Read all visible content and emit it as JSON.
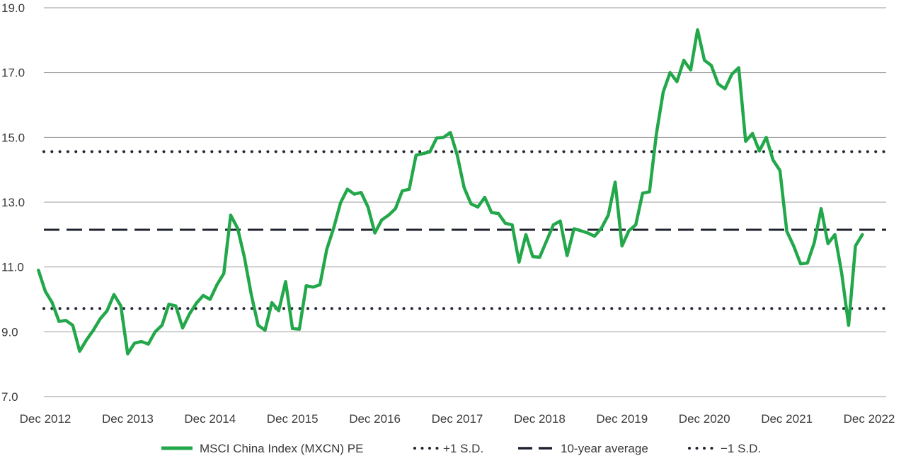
{
  "chart_data": {
    "type": "line",
    "title": "",
    "xlabel": "",
    "ylabel": "",
    "ylim": [
      7.0,
      19.0
    ],
    "xlim": [
      "2012-11",
      "2022-12"
    ],
    "y_ticks": [
      "7.0",
      "9.0",
      "11.0",
      "13.0",
      "15.0",
      "17.0",
      "19.0"
    ],
    "x_ticks": [
      "Dec 2012",
      "Dec 2013",
      "Dec 2014",
      "Dec 2015",
      "Dec 2016",
      "Dec 2017",
      "Dec 2018",
      "Dec 2019",
      "Dec 2020",
      "Dec 2021",
      "Dec 2022"
    ],
    "grid": "horizontal",
    "legend_position": "bottom",
    "series": [
      {
        "name": "MSCI China Index (MXCN) PE",
        "color": "#22a84a",
        "style": "solid",
        "points": [
          [
            "2012-11",
            10.9
          ],
          [
            "2012-12",
            10.25
          ],
          [
            "2013-01",
            9.9
          ],
          [
            "2013-02",
            9.32
          ],
          [
            "2013-03",
            9.35
          ],
          [
            "2013-04",
            9.2
          ],
          [
            "2013-05",
            8.4
          ],
          [
            "2013-06",
            8.75
          ],
          [
            "2013-07",
            9.05
          ],
          [
            "2013-08",
            9.4
          ],
          [
            "2013-09",
            9.65
          ],
          [
            "2013-10",
            10.15
          ],
          [
            "2013-11",
            9.8
          ],
          [
            "2013-12",
            8.32
          ],
          [
            "2014-01",
            8.65
          ],
          [
            "2014-02",
            8.7
          ],
          [
            "2014-03",
            8.62
          ],
          [
            "2014-04",
            9.0
          ],
          [
            "2014-05",
            9.2
          ],
          [
            "2014-06",
            9.85
          ],
          [
            "2014-07",
            9.8
          ],
          [
            "2014-08",
            9.12
          ],
          [
            "2014-09",
            9.55
          ],
          [
            "2014-10",
            9.88
          ],
          [
            "2014-11",
            10.12
          ],
          [
            "2014-12",
            10.0
          ],
          [
            "2015-01",
            10.45
          ],
          [
            "2015-02",
            10.8
          ],
          [
            "2015-03",
            12.6
          ],
          [
            "2015-04",
            12.2
          ],
          [
            "2015-05",
            11.3
          ],
          [
            "2015-06",
            10.15
          ],
          [
            "2015-07",
            9.2
          ],
          [
            "2015-08",
            9.05
          ],
          [
            "2015-09",
            9.9
          ],
          [
            "2015-10",
            9.65
          ],
          [
            "2015-11",
            10.55
          ],
          [
            "2015-12",
            9.1
          ],
          [
            "2016-01",
            9.08
          ],
          [
            "2016-02",
            10.42
          ],
          [
            "2016-03",
            10.38
          ],
          [
            "2016-04",
            10.45
          ],
          [
            "2016-05",
            11.55
          ],
          [
            "2016-06",
            12.2
          ],
          [
            "2016-07",
            12.98
          ],
          [
            "2016-08",
            13.4
          ],
          [
            "2016-09",
            13.25
          ],
          [
            "2016-10",
            13.3
          ],
          [
            "2016-11",
            12.85
          ],
          [
            "2016-12",
            12.05
          ],
          [
            "2017-01",
            12.45
          ],
          [
            "2017-02",
            12.6
          ],
          [
            "2017-03",
            12.8
          ],
          [
            "2017-04",
            13.35
          ],
          [
            "2017-05",
            13.4
          ],
          [
            "2017-06",
            14.45
          ],
          [
            "2017-07",
            14.5
          ],
          [
            "2017-08",
            14.55
          ],
          [
            "2017-09",
            14.98
          ],
          [
            "2017-10",
            15.0
          ],
          [
            "2017-11",
            15.15
          ],
          [
            "2017-12",
            14.45
          ],
          [
            "2018-01",
            13.45
          ],
          [
            "2018-02",
            12.95
          ],
          [
            "2018-03",
            12.85
          ],
          [
            "2018-04",
            13.15
          ],
          [
            "2018-05",
            12.68
          ],
          [
            "2018-06",
            12.65
          ],
          [
            "2018-07",
            12.35
          ],
          [
            "2018-08",
            12.3
          ],
          [
            "2018-09",
            11.15
          ],
          [
            "2018-10",
            12.0
          ],
          [
            "2018-11",
            11.32
          ],
          [
            "2018-12",
            11.3
          ],
          [
            "2019-01",
            11.8
          ],
          [
            "2019-02",
            12.3
          ],
          [
            "2019-03",
            12.42
          ],
          [
            "2019-04",
            11.35
          ],
          [
            "2019-05",
            12.18
          ],
          [
            "2019-06",
            12.12
          ],
          [
            "2019-07",
            12.05
          ],
          [
            "2019-08",
            11.95
          ],
          [
            "2019-09",
            12.2
          ],
          [
            "2019-10",
            12.6
          ],
          [
            "2019-11",
            13.62
          ],
          [
            "2019-12",
            11.65
          ],
          [
            "2020-01",
            12.12
          ],
          [
            "2020-02",
            12.3
          ],
          [
            "2020-03",
            13.28
          ],
          [
            "2020-04",
            13.32
          ],
          [
            "2020-05",
            15.1
          ],
          [
            "2020-06",
            16.4
          ],
          [
            "2020-07",
            17.0
          ],
          [
            "2020-08",
            16.72
          ],
          [
            "2020-09",
            17.38
          ],
          [
            "2020-10",
            17.08
          ],
          [
            "2020-11",
            18.32
          ],
          [
            "2020-12",
            17.38
          ],
          [
            "2021-01",
            17.22
          ],
          [
            "2021-02",
            16.65
          ],
          [
            "2021-03",
            16.5
          ],
          [
            "2021-04",
            16.95
          ],
          [
            "2021-05",
            17.15
          ],
          [
            "2021-06",
            14.88
          ],
          [
            "2021-07",
            15.12
          ],
          [
            "2021-08",
            14.58
          ],
          [
            "2021-09",
            15.0
          ],
          [
            "2021-10",
            14.3
          ],
          [
            "2021-11",
            13.98
          ],
          [
            "2021-12",
            12.1
          ],
          [
            "2022-01",
            11.65
          ],
          [
            "2022-02",
            11.1
          ],
          [
            "2022-03",
            11.12
          ],
          [
            "2022-04",
            11.75
          ],
          [
            "2022-05",
            12.8
          ],
          [
            "2022-06",
            11.72
          ],
          [
            "2022-07",
            12.0
          ],
          [
            "2022-08",
            10.8
          ],
          [
            "2022-09",
            9.2
          ],
          [
            "2022-10",
            11.65
          ],
          [
            "2022-11",
            12.0
          ]
        ]
      },
      {
        "name": "+1 S.D.",
        "color": "#1f2330",
        "style": "dotted",
        "value": 14.56
      },
      {
        "name": "10-year average",
        "color": "#1f2330",
        "style": "dashed",
        "value": 12.15
      },
      {
        "name": "−1 S.D.",
        "color": "#1f2330",
        "style": "dotted",
        "value": 9.72
      }
    ]
  }
}
